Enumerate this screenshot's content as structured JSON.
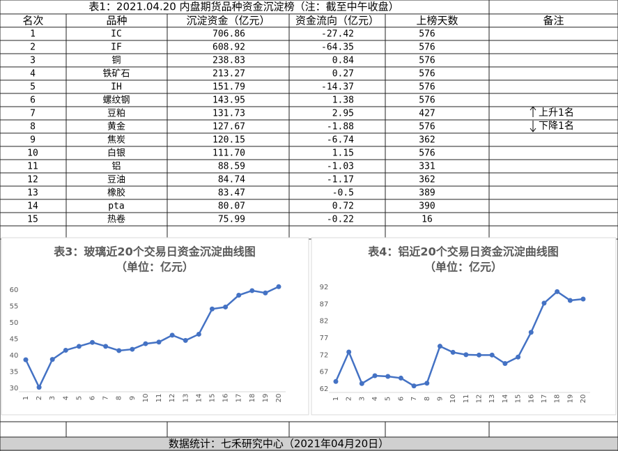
{
  "table": {
    "title": "表1：2021.04.20 内盘期货品种资金沉淀榜（注：截至中午收盘）",
    "header": [
      "名次",
      "品种",
      "沉淀资金（亿元）",
      "资金流向（亿元）",
      "上榜天数",
      "备注"
    ],
    "rows": [
      [
        "1",
        "IC",
        "706.86",
        "-27.42",
        "576"
      ],
      [
        "2",
        "IF",
        "608.92",
        "-64.35",
        "576"
      ],
      [
        "3",
        "铜",
        "238.83",
        "0.84",
        "576"
      ],
      [
        "4",
        "铁矿石",
        "213.27",
        "0.27",
        "576"
      ],
      [
        "5",
        "IH",
        "151.79",
        "-14.37",
        "576"
      ],
      [
        "6",
        "螺纹钢",
        "143.95",
        "1.38",
        "576"
      ],
      [
        "7",
        "豆粕",
        "131.73",
        "2.95",
        "427"
      ],
      [
        "8",
        "黄金",
        "127.67",
        "-1.88",
        "576"
      ],
      [
        "9",
        "焦炭",
        "120.15",
        "-6.74",
        "362"
      ],
      [
        "10",
        "白银",
        "111.70",
        "1.15",
        "576"
      ],
      [
        "11",
        "铝",
        "88.59",
        "-1.03",
        "331"
      ],
      [
        "12",
        "豆油",
        "84.74",
        "-1.17",
        "362"
      ],
      [
        "13",
        "橡胶",
        "83.47",
        "-0.5",
        "389"
      ],
      [
        "14",
        "pta",
        "80.07",
        "0.72",
        "390"
      ],
      [
        "15",
        "热卷",
        "75.99",
        "-0.22",
        "16"
      ]
    ],
    "remarks": [
      "上升1名",
      "下降1名"
    ],
    "footer": "数据统计：七禾研究中心（2021年04月20日）"
  },
  "chart_data": [
    {
      "type": "line",
      "title": "表3：玻璃近20个交易日资金沉淀曲线图",
      "subtitle": "（单位：亿元）",
      "categories": [
        "1",
        "2",
        "3",
        "4",
        "5",
        "6",
        "7",
        "8",
        "9",
        "10",
        "11",
        "12",
        "13",
        "14",
        "15",
        "16",
        "17",
        "18",
        "19",
        "20"
      ],
      "series": [
        {
          "name": "玻璃",
          "color": "#4472c4",
          "values": [
            38.7,
            30.3,
            38.8,
            41.6,
            42.8,
            44.0,
            42.8,
            41.5,
            41.9,
            43.6,
            44.1,
            46.2,
            44.6,
            46.5,
            54.2,
            54.8,
            58.4,
            59.8,
            59.1,
            61.0
          ]
        }
      ],
      "ylim": [
        30,
        62
      ],
      "yticks": [
        30,
        35,
        40,
        45,
        50,
        55,
        60
      ]
    },
    {
      "type": "line",
      "title": "表4：铝近20个交易日资金沉淀曲线图",
      "subtitle": "（单位：亿元）",
      "categories": [
        "1",
        "2",
        "3",
        "4",
        "5",
        "6",
        "7",
        "8",
        "9",
        "10",
        "11",
        "12",
        "13",
        "14",
        "15",
        "16",
        "17",
        "18",
        "19",
        "20"
      ],
      "series": [
        {
          "name": "铝",
          "color": "#4472c4",
          "values": [
            64.2,
            72.9,
            63.6,
            65.9,
            65.7,
            65.2,
            62.9,
            63.7,
            74.6,
            72.8,
            72.1,
            72.0,
            72.0,
            69.5,
            71.4,
            78.7,
            87.3,
            90.7,
            88.1,
            88.5
          ]
        }
      ],
      "ylim": [
        62,
        93
      ],
      "yticks": [
        62,
        67,
        72,
        77,
        82,
        87,
        92
      ]
    }
  ]
}
